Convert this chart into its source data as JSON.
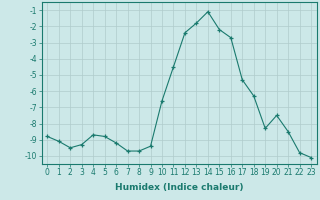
{
  "x": [
    0,
    1,
    2,
    3,
    4,
    5,
    6,
    7,
    8,
    9,
    10,
    11,
    12,
    13,
    14,
    15,
    16,
    17,
    18,
    19,
    20,
    21,
    22,
    23
  ],
  "y": [
    -8.8,
    -9.1,
    -9.5,
    -9.3,
    -8.7,
    -8.8,
    -9.2,
    -9.7,
    -9.7,
    -9.4,
    -6.6,
    -4.5,
    -2.4,
    -1.8,
    -1.1,
    -2.2,
    -2.7,
    -5.3,
    -6.3,
    -8.3,
    -7.5,
    -8.5,
    -9.8,
    -10.1
  ],
  "line_color": "#1a7a6e",
  "marker": "+",
  "marker_size": 3,
  "background_color": "#cce8e8",
  "grid_color": "#b0cccc",
  "xlabel": "Humidex (Indice chaleur)",
  "xlim": [
    -0.5,
    23.5
  ],
  "ylim": [
    -10.5,
    -0.5
  ],
  "yticks": [
    -1,
    -2,
    -3,
    -4,
    -5,
    -6,
    -7,
    -8,
    -9,
    -10
  ],
  "xticks": [
    0,
    1,
    2,
    3,
    4,
    5,
    6,
    7,
    8,
    9,
    10,
    11,
    12,
    13,
    14,
    15,
    16,
    17,
    18,
    19,
    20,
    21,
    22,
    23
  ],
  "tick_label_fontsize": 5.5,
  "xlabel_fontsize": 6.5
}
